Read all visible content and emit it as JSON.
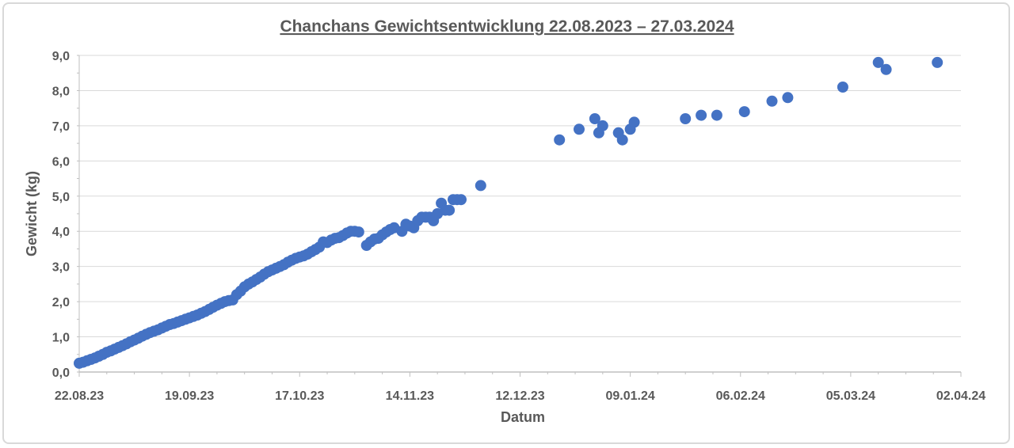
{
  "chart_data": {
    "type": "scatter",
    "title": "Chanchans Gewichtsentwicklung 22.08.2023 – 27.03.2024",
    "xlabel": "Datum",
    "ylabel": "Gewicht (kg)",
    "x_axis_type": "date",
    "xlim": [
      "2023-08-22",
      "2024-04-02"
    ],
    "ylim": [
      0,
      9
    ],
    "x_tick_labels": [
      "22.08.23",
      "19.09.23",
      "17.10.23",
      "14.11.23",
      "12.12.23",
      "09.01.24",
      "06.02.24",
      "05.03.24",
      "02.04.24"
    ],
    "y_tick_labels": [
      "0,0",
      "1,0",
      "2,0",
      "3,0",
      "4,0",
      "5,0",
      "6,0",
      "7,0",
      "8,0",
      "9,0"
    ],
    "grid": "horizontal",
    "legend": "none",
    "marker_color": "#4472C4",
    "points": [
      [
        "2023-08-22",
        0.25
      ],
      [
        "2023-08-23",
        0.28
      ],
      [
        "2023-08-24",
        0.32
      ],
      [
        "2023-08-25",
        0.36
      ],
      [
        "2023-08-26",
        0.4
      ],
      [
        "2023-08-27",
        0.45
      ],
      [
        "2023-08-28",
        0.5
      ],
      [
        "2023-08-29",
        0.56
      ],
      [
        "2023-08-30",
        0.6
      ],
      [
        "2023-08-31",
        0.65
      ],
      [
        "2023-09-01",
        0.7
      ],
      [
        "2023-09-02",
        0.75
      ],
      [
        "2023-09-03",
        0.8
      ],
      [
        "2023-09-04",
        0.86
      ],
      [
        "2023-09-05",
        0.91
      ],
      [
        "2023-09-06",
        0.96
      ],
      [
        "2023-09-07",
        1.02
      ],
      [
        "2023-09-08",
        1.07
      ],
      [
        "2023-09-09",
        1.12
      ],
      [
        "2023-09-10",
        1.16
      ],
      [
        "2023-09-11",
        1.2
      ],
      [
        "2023-09-12",
        1.25
      ],
      [
        "2023-09-13",
        1.3
      ],
      [
        "2023-09-14",
        1.35
      ],
      [
        "2023-09-15",
        1.38
      ],
      [
        "2023-09-16",
        1.42
      ],
      [
        "2023-09-17",
        1.46
      ],
      [
        "2023-09-18",
        1.5
      ],
      [
        "2023-09-19",
        1.54
      ],
      [
        "2023-09-20",
        1.58
      ],
      [
        "2023-09-21",
        1.62
      ],
      [
        "2023-09-22",
        1.67
      ],
      [
        "2023-09-23",
        1.72
      ],
      [
        "2023-09-24",
        1.78
      ],
      [
        "2023-09-25",
        1.84
      ],
      [
        "2023-09-26",
        1.9
      ],
      [
        "2023-09-27",
        1.95
      ],
      [
        "2023-09-28",
        2.0
      ],
      [
        "2023-09-29",
        2.03
      ],
      [
        "2023-09-30",
        2.05
      ],
      [
        "2023-10-01",
        2.2
      ],
      [
        "2023-10-02",
        2.3
      ],
      [
        "2023-10-03",
        2.42
      ],
      [
        "2023-10-04",
        2.5
      ],
      [
        "2023-10-05",
        2.56
      ],
      [
        "2023-10-06",
        2.63
      ],
      [
        "2023-10-07",
        2.7
      ],
      [
        "2023-10-08",
        2.78
      ],
      [
        "2023-10-09",
        2.85
      ],
      [
        "2023-10-10",
        2.9
      ],
      [
        "2023-10-11",
        2.95
      ],
      [
        "2023-10-12",
        3.0
      ],
      [
        "2023-10-13",
        3.05
      ],
      [
        "2023-10-14",
        3.12
      ],
      [
        "2023-10-15",
        3.18
      ],
      [
        "2023-10-16",
        3.23
      ],
      [
        "2023-10-17",
        3.27
      ],
      [
        "2023-10-18",
        3.3
      ],
      [
        "2023-10-19",
        3.35
      ],
      [
        "2023-10-20",
        3.42
      ],
      [
        "2023-10-21",
        3.48
      ],
      [
        "2023-10-22",
        3.55
      ],
      [
        "2023-10-23",
        3.7
      ],
      [
        "2023-10-24",
        3.68
      ],
      [
        "2023-10-25",
        3.75
      ],
      [
        "2023-10-26",
        3.8
      ],
      [
        "2023-10-27",
        3.82
      ],
      [
        "2023-10-28",
        3.88
      ],
      [
        "2023-10-29",
        3.95
      ],
      [
        "2023-10-30",
        4.0
      ],
      [
        "2023-10-31",
        4.0
      ],
      [
        "2023-11-01",
        3.98
      ],
      [
        "2023-11-03",
        3.6
      ],
      [
        "2023-11-04",
        3.7
      ],
      [
        "2023-11-05",
        3.78
      ],
      [
        "2023-11-06",
        3.8
      ],
      [
        "2023-11-07",
        3.9
      ],
      [
        "2023-11-08",
        3.98
      ],
      [
        "2023-11-09",
        4.05
      ],
      [
        "2023-11-10",
        4.1
      ],
      [
        "2023-11-12",
        4.0
      ],
      [
        "2023-11-13",
        4.2
      ],
      [
        "2023-11-14",
        4.15
      ],
      [
        "2023-11-15",
        4.1
      ],
      [
        "2023-11-16",
        4.3
      ],
      [
        "2023-11-17",
        4.4
      ],
      [
        "2023-11-18",
        4.4
      ],
      [
        "2023-11-19",
        4.4
      ],
      [
        "2023-11-20",
        4.3
      ],
      [
        "2023-11-21",
        4.5
      ],
      [
        "2023-11-22",
        4.8
      ],
      [
        "2023-11-23",
        4.6
      ],
      [
        "2023-11-24",
        4.6
      ],
      [
        "2023-11-25",
        4.9
      ],
      [
        "2023-11-26",
        4.9
      ],
      [
        "2023-11-27",
        4.9
      ],
      [
        "2023-12-02",
        5.3
      ],
      [
        "2023-12-22",
        6.6
      ],
      [
        "2023-12-27",
        6.9
      ],
      [
        "2023-12-31",
        7.2
      ],
      [
        "2024-01-01",
        6.8
      ],
      [
        "2024-01-02",
        7.0
      ],
      [
        "2024-01-06",
        6.8
      ],
      [
        "2024-01-07",
        6.6
      ],
      [
        "2024-01-09",
        6.9
      ],
      [
        "2024-01-10",
        7.1
      ],
      [
        "2024-01-23",
        7.2
      ],
      [
        "2024-01-27",
        7.3
      ],
      [
        "2024-01-31",
        7.3
      ],
      [
        "2024-02-07",
        7.4
      ],
      [
        "2024-02-14",
        7.7
      ],
      [
        "2024-02-18",
        7.8
      ],
      [
        "2024-03-03",
        8.1
      ],
      [
        "2024-03-12",
        8.8
      ],
      [
        "2024-03-14",
        8.6
      ],
      [
        "2024-03-27",
        8.8
      ]
    ]
  }
}
